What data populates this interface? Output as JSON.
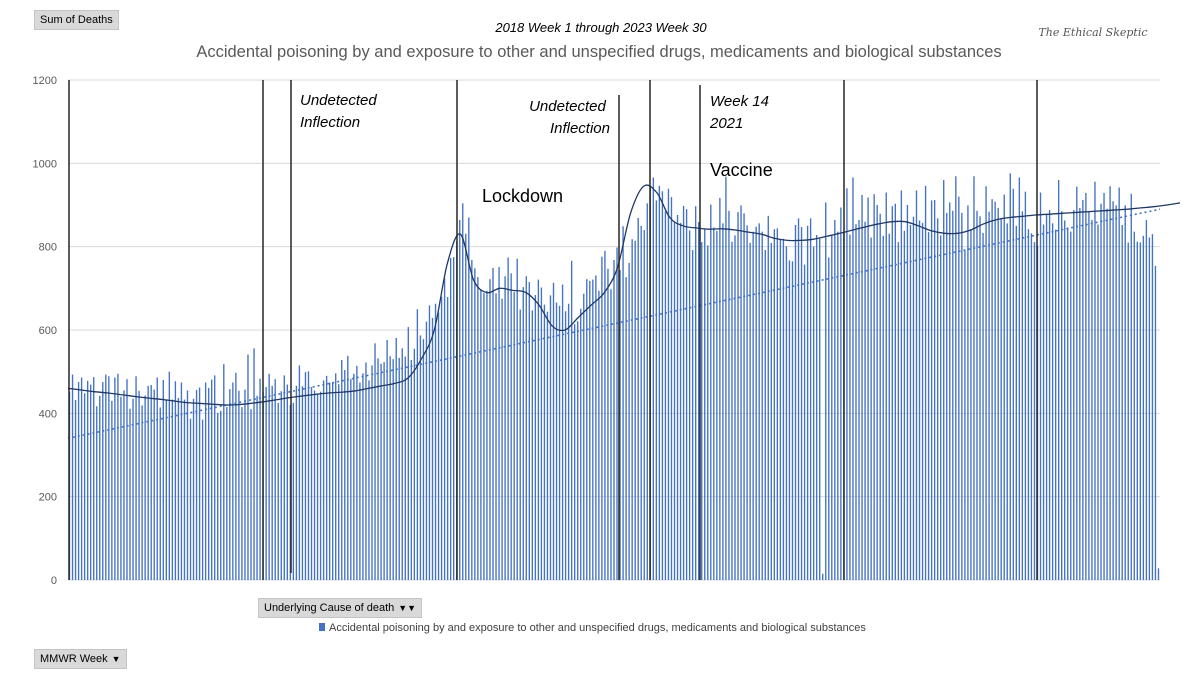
{
  "field_buttons": {
    "values_label": "Sum of Deaths",
    "legend_field_label": "Underlying Cause of death",
    "axis_field_label": "MMWR Week"
  },
  "watermark": "The Ethical Skeptic",
  "chart_data": {
    "type": "bar",
    "subtitle": "2018 Week 1 through 2023 Week 30",
    "title": "Accidental poisoning by and exposure to other and unspecified drugs, medicaments and biological substances",
    "xlabel": "",
    "ylabel": "",
    "ylim": [
      0,
      1200
    ],
    "yticks": [
      0,
      200,
      400,
      600,
      800,
      1000,
      1200
    ],
    "grid": true,
    "legend_position": "bottom",
    "color": "#4472c4",
    "series": [
      {
        "name": "Accidental poisoning by and exposure to other and unspecified drugs, medicaments and biological substances",
        "values": [
          452,
          493,
          432,
          475,
          486,
          448,
          478,
          469,
          487,
          417,
          442,
          475,
          493,
          489,
          430,
          486,
          495,
          440,
          455,
          482,
          411,
          435,
          489,
          454,
          419,
          443,
          466,
          468,
          457,
          486,
          414,
          480,
          431,
          500,
          433,
          477,
          437,
          474,
          433,
          455,
          387,
          435,
          456,
          462,
          385,
          474,
          461,
          481,
          491,
          401,
          406,
          518,
          415,
          458,
          474,
          497,
          454,
          415,
          457,
          541,
          410,
          556,
          442,
          483,
          452,
          463,
          495,
          466,
          482,
          425,
          453,
          491,
          469,
          420,
          425,
          466,
          515,
          465,
          499,
          501,
          463,
          455,
          447,
          452,
          479,
          490,
          474,
          475,
          496,
          470,
          528,
          504,
          538,
          482,
          495,
          514,
          474,
          496,
          522,
          479,
          515,
          568,
          532,
          519,
          523,
          576,
          537,
          530,
          581,
          533,
          556,
          536,
          607,
          528,
          555,
          650,
          587,
          578,
          620,
          659,
          629,
          663,
          642,
          680,
          724,
          679,
          773,
          775,
          813,
          864,
          904,
          831,
          870,
          768,
          748,
          727,
          698,
          689,
          694,
          722,
          749,
          688,
          751,
          675,
          729,
          774,
          736,
          691,
          771,
          649,
          703,
          729,
          715,
          647,
          684,
          721,
          702,
          661,
          644,
          683,
          713,
          666,
          658,
          709,
          645,
          663,
          766,
          614,
          621,
          651,
          687,
          722,
          718,
          721,
          731,
          694,
          776,
          790,
          747,
          698,
          768,
          798,
          744,
          849,
          727,
          761,
          818,
          814,
          869,
          850,
          840,
          904,
          941,
          966,
          911,
          946,
          933,
          885,
          939,
          919,
          860,
          876,
          857,
          898,
          890,
          839,
          792,
          897,
          859,
          811,
          843,
          803,
          901,
          846,
          838,
          917,
          856,
          968,
          886,
          812,
          827,
          883,
          899,
          880,
          851,
          809,
          836,
          848,
          856,
          836,
          792,
          874,
          809,
          842,
          844,
          818,
          819,
          801,
          767,
          765,
          852,
          868,
          847,
          757,
          850,
          868,
          800,
          828,
          819,
          15,
          906,
          774,
          826,
          864,
          836,
          894,
          835,
          940,
          829,
          966,
          854,
          864,
          924,
          860,
          918,
          822,
          926,
          900,
          879,
          826,
          930,
          831,
          897,
          903,
          811,
          935,
          838,
          900,
          852,
          872,
          935,
          863,
          857,
          946,
          835,
          911,
          912,
          868,
          827,
          960,
          881,
          906,
          886,
          969,
          920,
          881,
          792,
          899,
          842,
          969,
          886,
          873,
          833,
          945,
          884,
          914,
          908,
          893,
          867,
          925,
          856,
          976,
          939,
          850,
          966,
          885,
          932,
          842,
          832,
          811,
          803,
          930,
          853,
          879,
          888,
          856,
          841,
          960,
          885,
          863,
          846,
          836,
          888,
          944,
          893,
          912,
          929,
          883,
          864,
          956,
          853,
          903,
          929,
          891,
          945,
          909,
          899,
          942,
          852,
          899,
          810,
          927,
          836,
          812,
          810,
          826,
          864,
          822,
          830,
          754,
          28
        ]
      }
    ],
    "trend_smooth": [
      460,
      456,
      452,
      449,
      445,
      441,
      437,
      434,
      430,
      426,
      424,
      422,
      420,
      421,
      424,
      428,
      433,
      438,
      442,
      446,
      449,
      451,
      454,
      460,
      466,
      472,
      485,
      530,
      600,
      760,
      830,
      720,
      690,
      700,
      695,
      690,
      660,
      610,
      600,
      630,
      660,
      690,
      750,
      880,
      945,
      930,
      870,
      850,
      845,
      842,
      843,
      840,
      835,
      830,
      820,
      815,
      815,
      818,
      825,
      832,
      840,
      848,
      855,
      860,
      860,
      850,
      838,
      832,
      832,
      840,
      855,
      865,
      870,
      873,
      876,
      878,
      880,
      882,
      884,
      886,
      888,
      890,
      893,
      896,
      900,
      905
    ],
    "trend_linear": [
      340,
      890
    ],
    "annotations": [
      {
        "label": "Undetected",
        "label2": "Inflection",
        "style": "italic"
      },
      {
        "label": "Lockdown",
        "style": "normal"
      },
      {
        "label": "Undetected",
        "label2": "Inflection",
        "style": "italic"
      },
      {
        "label": "Week 14",
        "label2": "2021",
        "style": "italic"
      },
      {
        "label": "Vaccine",
        "style": "normal"
      }
    ]
  }
}
